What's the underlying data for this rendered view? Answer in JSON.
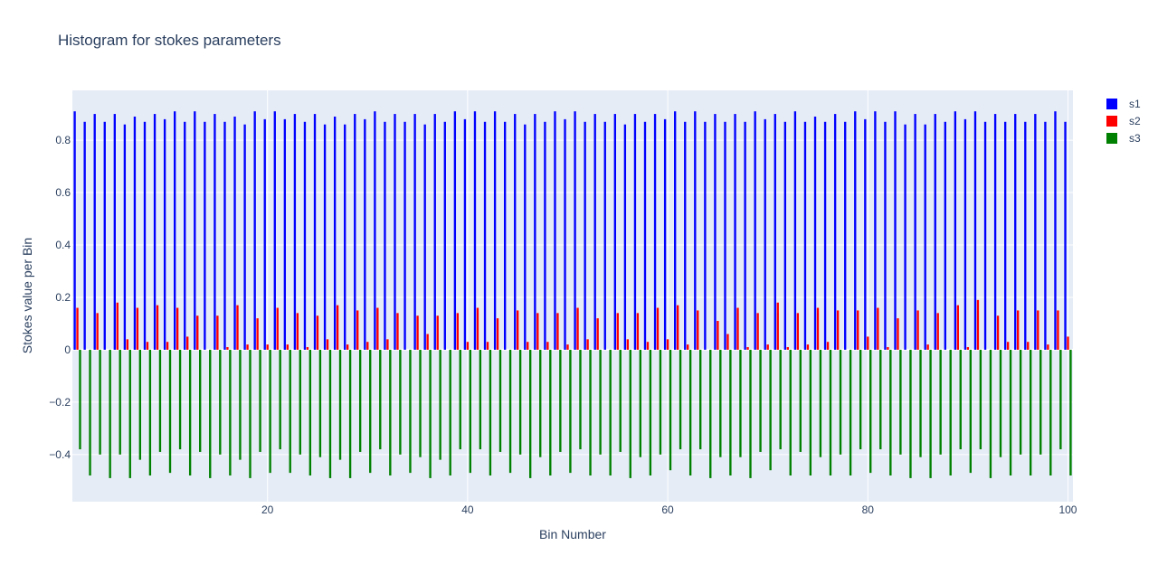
{
  "chart_data": {
    "type": "bar",
    "barmode": "group",
    "title": "Histogram for stokes parameters",
    "xlabel": "Bin Number",
    "ylabel": "Stokes value per Bin",
    "xlim": [
      0.5,
      100.5
    ],
    "ylim": [
      -0.58,
      0.99
    ],
    "x_ticks": [
      20,
      40,
      60,
      80,
      100
    ],
    "y_ticks": [
      -0.4,
      -0.2,
      0,
      0.2,
      0.4,
      0.6,
      0.8
    ],
    "grid": true,
    "legend_position": "top-right",
    "x": [
      1,
      2,
      3,
      4,
      5,
      6,
      7,
      8,
      9,
      10,
      11,
      12,
      13,
      14,
      15,
      16,
      17,
      18,
      19,
      20,
      21,
      22,
      23,
      24,
      25,
      26,
      27,
      28,
      29,
      30,
      31,
      32,
      33,
      34,
      35,
      36,
      37,
      38,
      39,
      40,
      41,
      42,
      43,
      44,
      45,
      46,
      47,
      48,
      49,
      50,
      51,
      52,
      53,
      54,
      55,
      56,
      57,
      58,
      59,
      60,
      61,
      62,
      63,
      64,
      65,
      66,
      67,
      68,
      69,
      70,
      71,
      72,
      73,
      74,
      75,
      76,
      77,
      78,
      79,
      80,
      81,
      82,
      83,
      84,
      85,
      86,
      87,
      88,
      89,
      90,
      91,
      92,
      93,
      94,
      95,
      96,
      97,
      98,
      99,
      100
    ],
    "series": [
      {
        "name": "s1",
        "color": "#0000ff",
        "values": [
          0.91,
          0.87,
          0.9,
          0.87,
          0.9,
          0.86,
          0.89,
          0.87,
          0.9,
          0.88,
          0.91,
          0.87,
          0.91,
          0.87,
          0.9,
          0.87,
          0.89,
          0.86,
          0.91,
          0.88,
          0.91,
          0.88,
          0.9,
          0.87,
          0.9,
          0.86,
          0.89,
          0.86,
          0.9,
          0.88,
          0.91,
          0.87,
          0.9,
          0.87,
          0.9,
          0.86,
          0.9,
          0.87,
          0.91,
          0.88,
          0.91,
          0.87,
          0.91,
          0.87,
          0.9,
          0.86,
          0.9,
          0.87,
          0.91,
          0.88,
          0.91,
          0.87,
          0.9,
          0.87,
          0.9,
          0.86,
          0.9,
          0.87,
          0.9,
          0.88,
          0.91,
          0.87,
          0.91,
          0.87,
          0.9,
          0.87,
          0.9,
          0.87,
          0.91,
          0.88,
          0.9,
          0.87,
          0.91,
          0.87,
          0.89,
          0.87,
          0.9,
          0.87,
          0.91,
          0.88,
          0.91,
          0.87,
          0.91,
          0.86,
          0.9,
          0.86,
          0.9,
          0.87,
          0.91,
          0.88,
          0.91,
          0.87,
          0.9,
          0.87,
          0.9,
          0.87,
          0.9,
          0.87,
          0.91,
          0.87
        ]
      },
      {
        "name": "s2",
        "color": "#ff0000",
        "values": [
          0.16,
          0.0,
          0.14,
          0.0,
          0.18,
          0.04,
          0.16,
          0.03,
          0.17,
          0.03,
          0.16,
          0.05,
          0.13,
          0.0,
          0.13,
          0.01,
          0.17,
          0.02,
          0.12,
          0.02,
          0.16,
          0.02,
          0.14,
          0.01,
          0.13,
          0.04,
          0.17,
          0.02,
          0.15,
          0.03,
          0.16,
          0.04,
          0.14,
          0.0,
          0.13,
          0.06,
          0.13,
          0.0,
          0.14,
          0.03,
          0.16,
          0.03,
          0.12,
          0.0,
          0.15,
          0.03,
          0.14,
          0.03,
          0.14,
          0.02,
          0.16,
          0.04,
          0.12,
          0.0,
          0.14,
          0.04,
          0.14,
          0.03,
          0.16,
          0.04,
          0.17,
          0.02,
          0.15,
          0.0,
          0.11,
          0.06,
          0.16,
          0.01,
          0.14,
          0.02,
          0.18,
          0.01,
          0.14,
          0.02,
          0.16,
          0.03,
          0.15,
          0.0,
          0.15,
          0.05,
          0.16,
          0.01,
          0.12,
          0.0,
          0.15,
          0.02,
          0.14,
          0.0,
          0.17,
          0.01,
          0.19,
          0.0,
          0.13,
          0.03,
          0.15,
          0.03,
          0.15,
          0.02,
          0.15,
          0.05
        ]
      },
      {
        "name": "s3",
        "color": "#008000",
        "values": [
          -0.38,
          -0.48,
          -0.4,
          -0.49,
          -0.4,
          -0.49,
          -0.42,
          -0.48,
          -0.39,
          -0.47,
          -0.38,
          -0.48,
          -0.39,
          -0.49,
          -0.4,
          -0.48,
          -0.42,
          -0.49,
          -0.39,
          -0.47,
          -0.38,
          -0.47,
          -0.4,
          -0.48,
          -0.41,
          -0.49,
          -0.42,
          -0.49,
          -0.39,
          -0.47,
          -0.38,
          -0.48,
          -0.4,
          -0.47,
          -0.41,
          -0.49,
          -0.42,
          -0.48,
          -0.38,
          -0.47,
          -0.38,
          -0.48,
          -0.39,
          -0.47,
          -0.4,
          -0.49,
          -0.41,
          -0.48,
          -0.39,
          -0.47,
          -0.38,
          -0.48,
          -0.4,
          -0.48,
          -0.39,
          -0.49,
          -0.41,
          -0.48,
          -0.4,
          -0.46,
          -0.38,
          -0.48,
          -0.38,
          -0.49,
          -0.41,
          -0.48,
          -0.41,
          -0.49,
          -0.39,
          -0.46,
          -0.38,
          -0.48,
          -0.39,
          -0.48,
          -0.41,
          -0.48,
          -0.4,
          -0.48,
          -0.38,
          -0.47,
          -0.38,
          -0.48,
          -0.4,
          -0.49,
          -0.41,
          -0.49,
          -0.4,
          -0.48,
          -0.38,
          -0.47,
          -0.38,
          -0.49,
          -0.41,
          -0.48,
          -0.4,
          -0.48,
          -0.4,
          -0.48,
          -0.38,
          -0.48
        ]
      }
    ]
  }
}
